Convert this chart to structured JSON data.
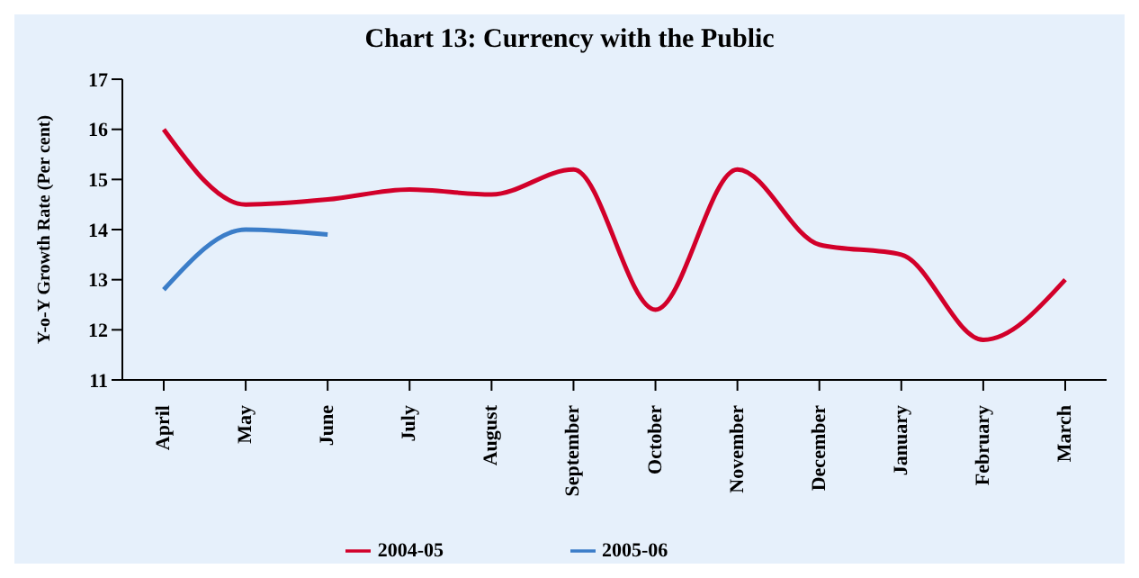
{
  "chart_data": {
    "type": "line",
    "title": "Chart 13: Currency with the Public",
    "ylabel": "Y-o-Y Growth Rate (Per cent)",
    "categories": [
      "April",
      "May",
      "June",
      "July",
      "August",
      "September",
      "October",
      "November",
      "December",
      "January",
      "February",
      "March"
    ],
    "series": [
      {
        "name": "2004-05",
        "color": "#d2002a",
        "values": [
          16.0,
          14.5,
          14.6,
          14.8,
          14.7,
          15.2,
          12.4,
          15.2,
          13.7,
          13.5,
          11.8,
          13.0
        ]
      },
      {
        "name": "2005-06",
        "color": "#3b7dc8",
        "values": [
          12.8,
          14.0,
          13.9,
          null,
          null,
          null,
          null,
          null,
          null,
          null,
          null,
          null
        ]
      }
    ],
    "ylim": [
      11,
      17
    ],
    "yticks": [
      11,
      12,
      13,
      14,
      15,
      16,
      17
    ],
    "grid": false,
    "legend": "bottom",
    "marker": "none",
    "line_style": "solid"
  }
}
